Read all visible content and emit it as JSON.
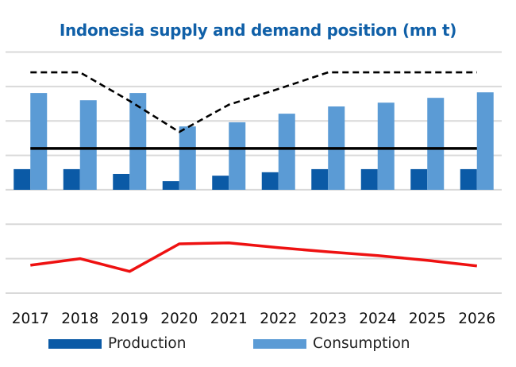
{
  "colors": {
    "title": "#1060a8",
    "production": "#0b5aa6",
    "consumption": "#5b9bd5",
    "solid_line": "#000000",
    "dashed_line": "#000000",
    "red_line": "#ee1111",
    "grid": "#d9d9d9"
  },
  "chart_data": {
    "type": "bar",
    "title": "Indonesia supply and demand position (mn t)",
    "xlabel": "",
    "ylabel": "",
    "y_axis_labels_shown": false,
    "units_note": "values in gridline units (no y-axis labels shown); 0 = baseline gridline",
    "ylim": [
      -3,
      4
    ],
    "grid": true,
    "legend_position": "bottom",
    "categories": [
      "2017",
      "2018",
      "2019",
      "2020",
      "2021",
      "2022",
      "2023",
      "2024",
      "2025",
      "2026"
    ],
    "series": [
      {
        "name": "Production",
        "type": "bar",
        "in_legend": true,
        "values": [
          0.6,
          0.6,
          0.46,
          0.25,
          0.41,
          0.51,
          0.6,
          0.6,
          0.6,
          0.6
        ]
      },
      {
        "name": "Consumption",
        "type": "bar",
        "in_legend": true,
        "values": [
          2.81,
          2.6,
          2.81,
          1.84,
          1.96,
          2.21,
          2.42,
          2.53,
          2.67,
          2.83
        ]
      },
      {
        "name": "solid-line",
        "type": "line",
        "style": "solid",
        "in_legend": false,
        "values": [
          1.2,
          1.2,
          1.2,
          1.2,
          1.2,
          1.2,
          1.2,
          1.2,
          1.2,
          1.2
        ]
      },
      {
        "name": "dashed-line",
        "type": "line",
        "style": "dashed",
        "in_legend": false,
        "values": [
          3.41,
          3.41,
          2.58,
          1.68,
          2.47,
          2.93,
          3.41,
          3.41,
          3.41,
          3.41
        ]
      },
      {
        "name": "red-line",
        "type": "line",
        "style": "solid",
        "in_legend": false,
        "values": [
          -2.19,
          -2.0,
          -2.37,
          -1.57,
          -1.54,
          -1.68,
          -1.8,
          -1.91,
          -2.05,
          -2.21
        ]
      }
    ],
    "legend": [
      "Production",
      "Consumption"
    ]
  }
}
